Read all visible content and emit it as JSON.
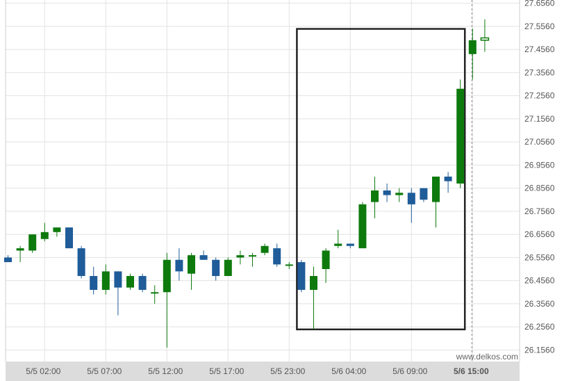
{
  "chart_data": {
    "type": "candlestick",
    "title": "",
    "xlabel": "",
    "ylabel": "",
    "ylim": [
      26.106,
      27.67
    ],
    "y_ticks": [
      "27.6560",
      "27.5560",
      "27.4560",
      "27.3560",
      "27.2560",
      "27.1560",
      "27.0560",
      "26.9560",
      "26.8560",
      "26.7560",
      "26.6560",
      "26.5560",
      "26.4560",
      "26.3560",
      "26.2560",
      "26.1560"
    ],
    "x_ticks": [
      {
        "label": "5/5 02:00",
        "index": 3
      },
      {
        "label": "5/5 07:00",
        "index": 8
      },
      {
        "label": "5/5 12:00",
        "index": 13
      },
      {
        "label": "5/5 17:00",
        "index": 18
      },
      {
        "label": "5/5 23:00",
        "index": 23
      },
      {
        "label": "5/6 04:00",
        "index": 28
      },
      {
        "label": "5/6 09:00",
        "index": 33
      },
      {
        "label": "5/6 15:00",
        "index": 38,
        "bold": true
      }
    ],
    "colors": {
      "up": "#0e7a0d",
      "down": "#1f5c99",
      "grid": "#e2e2e2",
      "box": "#222222",
      "cursor": "#888888"
    },
    "highlight_box": {
      "start_index": 24,
      "end_index": 37,
      "y_top": 27.545,
      "y_bottom": 26.245
    },
    "cursor_index": 38,
    "grid": true,
    "candles": [
      {
        "o": 26.556,
        "h": 26.566,
        "l": 26.536,
        "c": 26.536
      },
      {
        "o": 26.586,
        "h": 26.606,
        "l": 26.536,
        "c": 26.596
      },
      {
        "o": 26.586,
        "h": 26.656,
        "l": 26.576,
        "c": 26.656
      },
      {
        "o": 26.636,
        "h": 26.706,
        "l": 26.626,
        "c": 26.666
      },
      {
        "o": 26.666,
        "h": 26.686,
        "l": 26.646,
        "c": 26.686
      },
      {
        "o": 26.686,
        "h": 26.686,
        "l": 26.596,
        "c": 26.596
      },
      {
        "o": 26.596,
        "h": 26.606,
        "l": 26.466,
        "c": 26.476
      },
      {
        "o": 26.476,
        "h": 26.516,
        "l": 26.396,
        "c": 26.416
      },
      {
        "o": 26.416,
        "h": 26.526,
        "l": 26.396,
        "c": 26.496
      },
      {
        "o": 26.496,
        "h": 26.496,
        "l": 26.306,
        "c": 26.426
      },
      {
        "o": 26.426,
        "h": 26.486,
        "l": 26.416,
        "c": 26.476
      },
      {
        "o": 26.476,
        "h": 26.486,
        "l": 26.406,
        "c": 26.416
      },
      {
        "o": 26.406,
        "h": 26.436,
        "l": 26.356,
        "c": 26.406
      },
      {
        "o": 26.406,
        "h": 26.576,
        "l": 26.166,
        "c": 26.546
      },
      {
        "o": 26.546,
        "h": 26.596,
        "l": 26.456,
        "c": 26.496
      },
      {
        "o": 26.486,
        "h": 26.576,
        "l": 26.416,
        "c": 26.566
      },
      {
        "o": 26.566,
        "h": 26.586,
        "l": 26.546,
        "c": 26.546
      },
      {
        "o": 26.546,
        "h": 26.556,
        "l": 26.456,
        "c": 26.476
      },
      {
        "o": 26.476,
        "h": 26.556,
        "l": 26.476,
        "c": 26.546
      },
      {
        "o": 26.556,
        "h": 26.586,
        "l": 26.526,
        "c": 26.566
      },
      {
        "o": 26.566,
        "h": 26.576,
        "l": 26.516,
        "c": 26.566
      },
      {
        "o": 26.576,
        "h": 26.616,
        "l": 26.566,
        "c": 26.606
      },
      {
        "o": 26.596,
        "h": 26.616,
        "l": 26.516,
        "c": 26.526
      },
      {
        "o": 26.526,
        "h": 26.536,
        "l": 26.506,
        "c": 26.526
      },
      {
        "o": 26.536,
        "h": 26.546,
        "l": 26.406,
        "c": 26.416
      },
      {
        "o": 26.416,
        "h": 26.516,
        "l": 26.246,
        "c": 26.476
      },
      {
        "o": 26.506,
        "h": 26.596,
        "l": 26.446,
        "c": 26.586
      },
      {
        "o": 26.606,
        "h": 26.676,
        "l": 26.596,
        "c": 26.616
      },
      {
        "o": 26.616,
        "h": 26.616,
        "l": 26.596,
        "c": 26.606
      },
      {
        "o": 26.596,
        "h": 26.796,
        "l": 26.596,
        "c": 26.786
      },
      {
        "o": 26.796,
        "h": 26.906,
        "l": 26.726,
        "c": 26.846
      },
      {
        "o": 26.846,
        "h": 26.876,
        "l": 26.796,
        "c": 26.826
      },
      {
        "o": 26.826,
        "h": 26.856,
        "l": 26.796,
        "c": 26.836
      },
      {
        "o": 26.836,
        "h": 26.856,
        "l": 26.706,
        "c": 26.786
      },
      {
        "o": 26.856,
        "h": 26.856,
        "l": 26.796,
        "c": 26.806
      },
      {
        "o": 26.796,
        "h": 26.906,
        "l": 26.686,
        "c": 26.906
      },
      {
        "o": 26.906,
        "h": 26.926,
        "l": 26.836,
        "c": 26.886
      },
      {
        "o": 26.876,
        "h": 27.326,
        "l": 26.856,
        "c": 27.286
      },
      {
        "o": 27.436,
        "h": 27.546,
        "l": 27.326,
        "c": 27.496
      },
      {
        "o": 27.496,
        "h": 27.586,
        "l": 27.446,
        "c": 27.506
      }
    ]
  },
  "watermark": "www.delkos.com"
}
